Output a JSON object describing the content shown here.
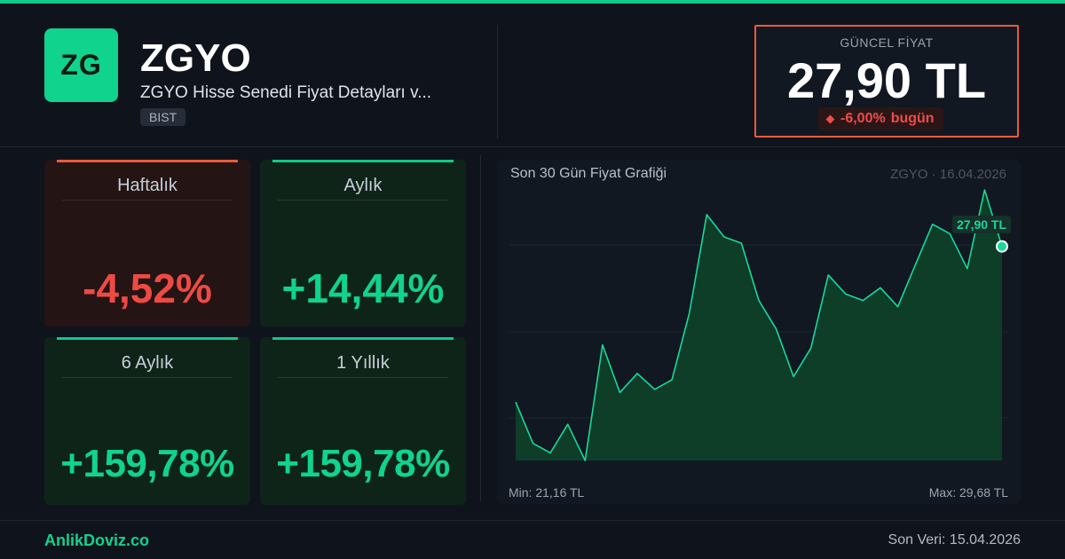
{
  "header": {
    "logo_text": "ZG",
    "ticker": "ZGYO",
    "subtitle": "ZGYO Hisse Senedi Fiyat Detayları v...",
    "exchange": "BIST"
  },
  "price": {
    "label": "GÜNCEL FİYAT",
    "value": "27,90 TL",
    "change": "-6,00%",
    "change_suffix": "bugün",
    "accent_color": "#ea5a3a"
  },
  "performance": [
    {
      "label": "Haftalık",
      "value": "-4,52%",
      "trend": "down"
    },
    {
      "label": "Aylık",
      "value": "+14,44%",
      "trend": "up"
    },
    {
      "label": "6 Aylık",
      "value": "+159,78%",
      "trend": "up"
    },
    {
      "label": "1 Yıllık",
      "value": "+159,78%",
      "trend": "up"
    }
  ],
  "chart": {
    "title": "Son 30 Gün Fiyat Grafiği",
    "meta": "ZGYO · 16.04.2026",
    "min_label": "Min: 21,16 TL",
    "max_label": "Max: 29,68 TL",
    "last_label": "27,90 TL",
    "line_color": "#18d99a"
  },
  "chart_data": {
    "type": "area",
    "title": "Son 30 Gün Fiyat Grafiği",
    "xlabel": "",
    "ylabel": "",
    "ylim": [
      21.16,
      29.68
    ],
    "grid": true,
    "series": [
      {
        "values": [
          23.0,
          21.7,
          21.4,
          22.3,
          21.16,
          24.8,
          23.3,
          23.9,
          23.4,
          23.7,
          25.8,
          28.9,
          28.2,
          28.0,
          26.2,
          25.3,
          23.8,
          24.7,
          27.0,
          26.4,
          26.2,
          26.6,
          26.0,
          27.3,
          28.6,
          28.3,
          27.2,
          29.68,
          27.9
        ]
      }
    ]
  },
  "footer": {
    "brand": "AnlikDoviz.co",
    "last_update": "Son Veri: 15.04.2026"
  }
}
